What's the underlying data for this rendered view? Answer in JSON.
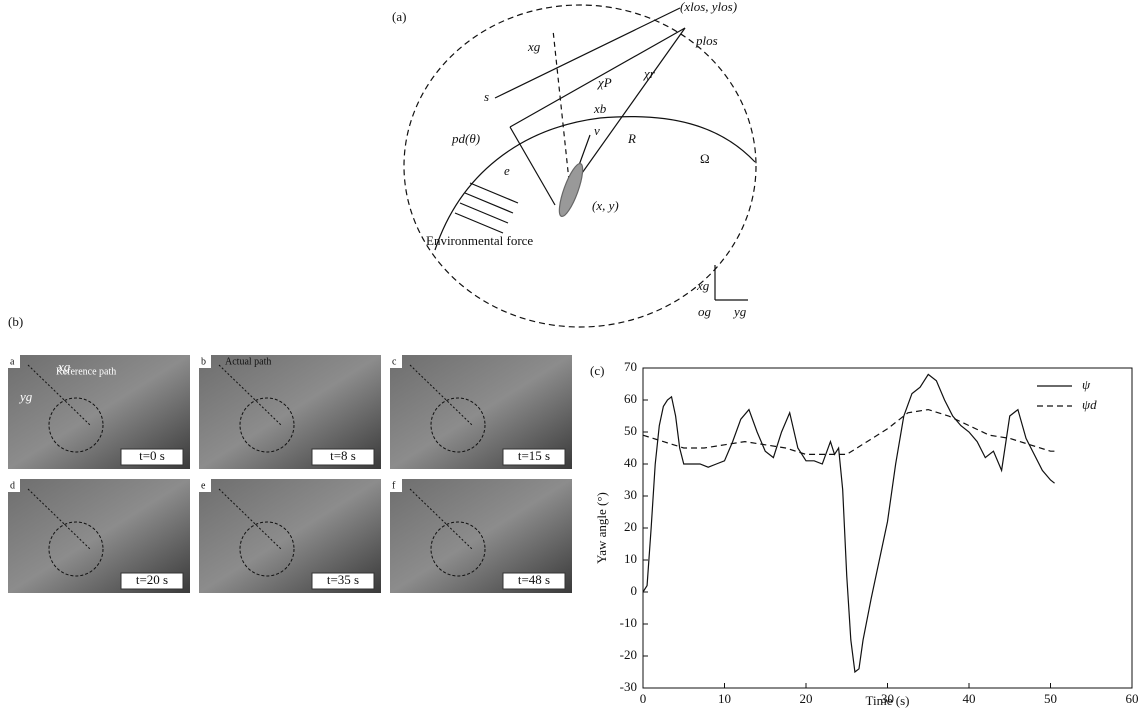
{
  "diagram": {
    "panel": "(a)",
    "los_point": "(xlos, ylos)",
    "plos": "plos",
    "xg": "xg",
    "chi_p": "χP",
    "chi_r": "χr",
    "s": "s",
    "xb": "xb",
    "v": "v",
    "R": "R",
    "omega": "Ω",
    "pd": "pd(θ)",
    "e": "e",
    "xy": "(x, y)",
    "force": "Environmental force",
    "axis_x": "xg",
    "axis_o": "og",
    "axis_y": "yg"
  },
  "photos": {
    "panel": "(b)",
    "frames": [
      {
        "label": "a",
        "time": "t=0 s"
      },
      {
        "label": "b",
        "time": "t=8 s"
      },
      {
        "label": "c",
        "time": "t=15 s"
      },
      {
        "label": "d",
        "time": "t=20 s"
      },
      {
        "label": "e",
        "time": "t=35 s"
      },
      {
        "label": "f",
        "time": "t=48 s"
      }
    ],
    "reference_path": "Reference path",
    "actual_path": "Actual path",
    "xg": "xg",
    "yg": "yg"
  },
  "chart_data": {
    "type": "line",
    "panel": "(c)",
    "x_label": "Time (s)",
    "y_label": "Yaw angle (°)",
    "xlim": [
      0,
      60
    ],
    "xticks": [
      0,
      10,
      20,
      30,
      40,
      50,
      60
    ],
    "ylim": [
      -30,
      70
    ],
    "yticks": [
      -30,
      -20,
      -10,
      0,
      10,
      20,
      30,
      40,
      50,
      60,
      70
    ],
    "legend": "upper right",
    "series": [
      {
        "name": "ψ",
        "color": "#111111",
        "dash": "solid",
        "x": [
          0,
          0.5,
          1,
          1.5,
          2,
          2.5,
          3,
          3.5,
          4,
          4.5,
          5,
          6,
          7,
          8,
          9,
          10,
          11,
          12,
          13,
          14,
          15,
          16,
          17,
          18,
          19,
          20,
          21,
          22,
          23,
          23.5,
          24,
          24.5,
          25,
          25.5,
          26,
          26.5,
          27,
          28,
          29,
          30,
          31,
          32,
          33,
          34,
          35,
          36,
          37,
          38,
          39,
          40,
          41,
          42,
          43,
          44,
          45,
          46,
          47,
          48,
          49,
          50,
          50.5
        ],
        "values": [
          0,
          2,
          20,
          40,
          52,
          58,
          60,
          61,
          55,
          45,
          40,
          40,
          40,
          39,
          40,
          41,
          47,
          54,
          57,
          50,
          44,
          42,
          50,
          56,
          45,
          41,
          41,
          40,
          47,
          43,
          45,
          32,
          5,
          -15,
          -25,
          -24,
          -15,
          -2,
          10,
          22,
          40,
          55,
          62,
          64,
          68,
          66,
          60,
          55,
          52,
          50,
          47,
          42,
          44,
          38,
          55,
          57,
          48,
          43,
          38,
          35,
          34
        ]
      },
      {
        "name": "ψd",
        "color": "#111111",
        "dash": "dashed",
        "x": [
          0,
          2.5,
          5,
          7.5,
          10,
          12.5,
          15,
          17.5,
          20,
          22.5,
          25,
          27.5,
          30,
          32.5,
          35,
          37.5,
          40,
          42.5,
          45,
          47.5,
          50,
          50.5
        ],
        "values": [
          49,
          47,
          45,
          45,
          46,
          47,
          46,
          45,
          43,
          43,
          43,
          47,
          51,
          56,
          57,
          55,
          52,
          49,
          48,
          46,
          44,
          44
        ]
      }
    ]
  }
}
